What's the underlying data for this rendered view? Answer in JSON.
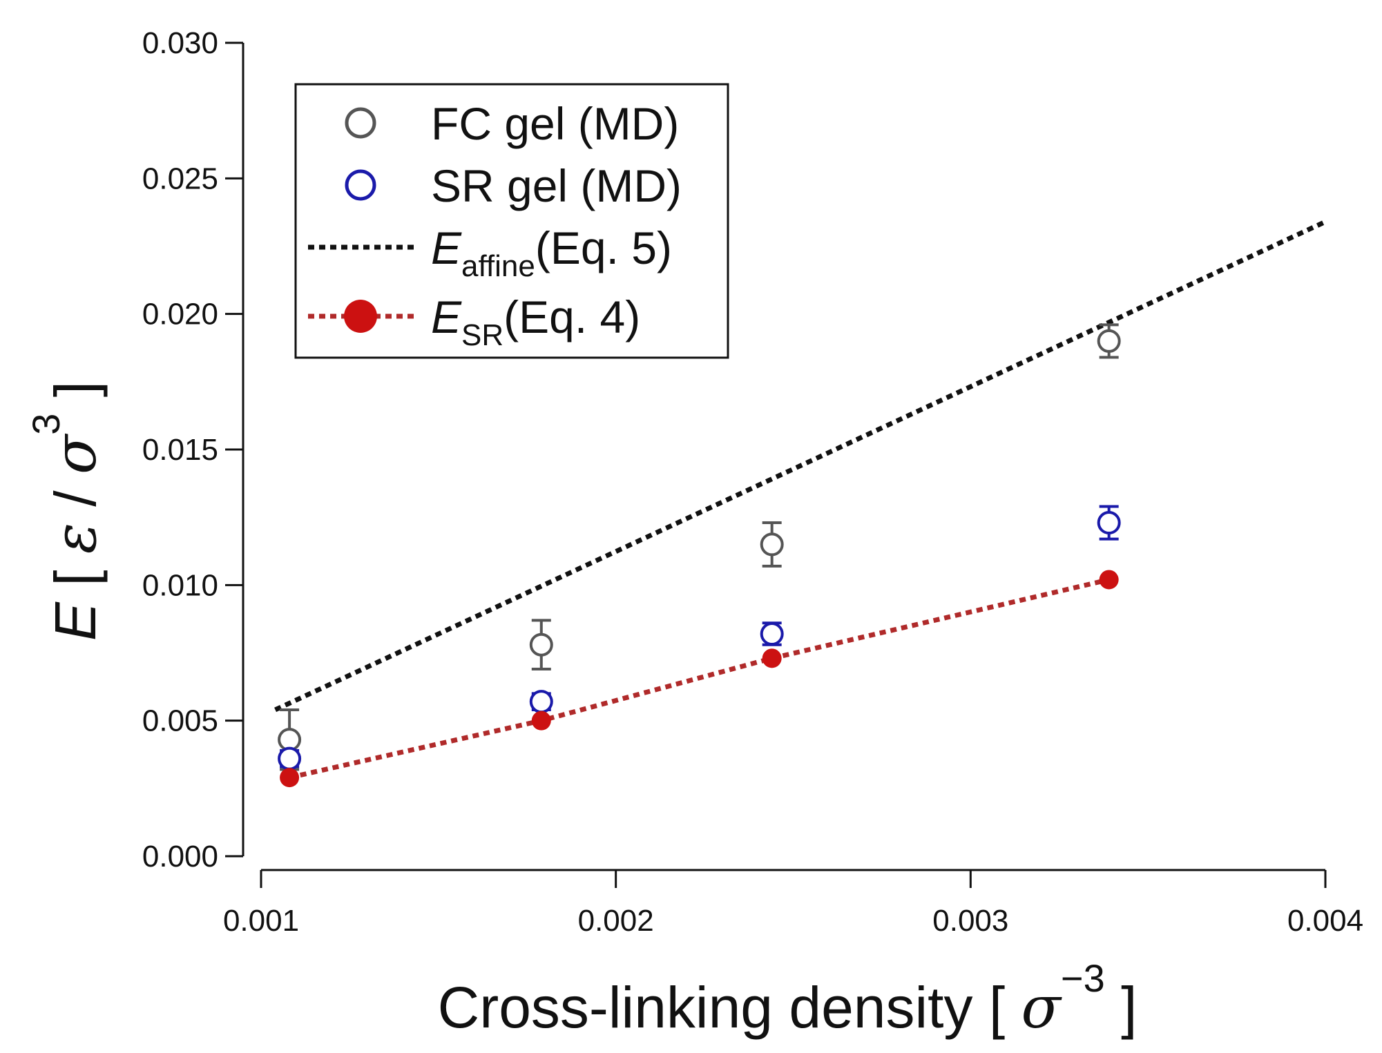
{
  "chart_data": {
    "type": "scatter",
    "xlabel": {
      "main": "Cross-linking density [ ",
      "symbol": "σ",
      "power": "−3",
      "close": " ]"
    },
    "ylabel": {
      "var": "E",
      "open": " [ ",
      "num": "ε",
      "slash": " / ",
      "den": "σ",
      "power": "3",
      "close": " ]"
    },
    "xlim": [
      0.001,
      0.004
    ],
    "ylim": [
      0.0,
      0.03
    ],
    "xticks": [
      0.001,
      0.002,
      0.003,
      0.004
    ],
    "xtick_labels": [
      "0.001",
      "0.002",
      "0.003",
      "0.004"
    ],
    "yticks": [
      0.0,
      0.005,
      0.01,
      0.015,
      0.02,
      0.025,
      0.03
    ],
    "ytick_labels": [
      "0.000",
      "0.005",
      "0.010",
      "0.015",
      "0.020",
      "0.025",
      "0.030"
    ],
    "legend_position": "top-left",
    "series": [
      {
        "name": "FC gel (MD)",
        "kind": "open-circle-errorbar",
        "color": "#555555",
        "x": [
          0.00108,
          0.00179,
          0.00244,
          0.00339
        ],
        "y": [
          0.0043,
          0.0078,
          0.0115,
          0.019
        ],
        "err": [
          0.0011,
          0.0009,
          0.0008,
          0.0006
        ]
      },
      {
        "name": "SR gel (MD)",
        "kind": "open-circle-errorbar",
        "color": "#1a1aaa",
        "x": [
          0.00108,
          0.00179,
          0.00244,
          0.00339
        ],
        "y": [
          0.0036,
          0.0057,
          0.0082,
          0.0123
        ],
        "err": [
          0.0003,
          0.0003,
          0.0004,
          0.0006
        ]
      },
      {
        "name": "E_affine (Eq. 5)",
        "kind": "dotted-line",
        "color": "#111111",
        "x": [
          0.00104,
          0.004
        ],
        "y": [
          0.0054,
          0.0234
        ]
      },
      {
        "name": "E_SR (Eq. 4)",
        "kind": "dotted-line-filled-markers",
        "color": "#cc1111",
        "line_color": "#b02a2a",
        "x": [
          0.00108,
          0.00179,
          0.00244,
          0.00339
        ],
        "y": [
          0.0029,
          0.005,
          0.0073,
          0.0102
        ]
      }
    ],
    "legend": [
      {
        "marker": "open-circle",
        "color": "#555555",
        "label": "FC gel (MD)"
      },
      {
        "marker": "open-circle",
        "color": "#1a1aaa",
        "label": "SR gel (MD)"
      },
      {
        "marker": "dotted-line",
        "color": "#111111",
        "var": "E",
        "sub": "affine",
        "rest": "(Eq. 5)"
      },
      {
        "marker": "dotted-line-dot",
        "color": "#cc1111",
        "var": "E",
        "sub": "SR",
        "rest": "(Eq. 4)"
      }
    ]
  }
}
